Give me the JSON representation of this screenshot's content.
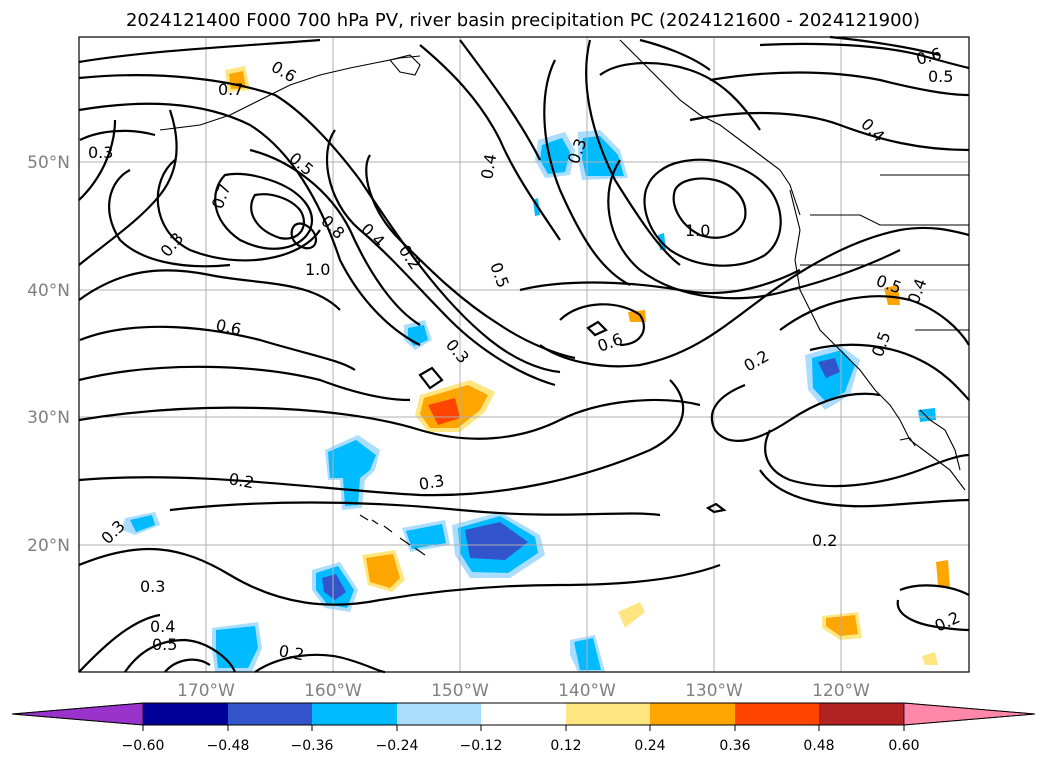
{
  "title": "2024121400 F000 700 hPa PV, river basin precipitation PC (2024121600 - 2024121900)",
  "colors": {
    "neg_lt_-0.60": "#9933cc",
    "-0.60_-0.48": "#000099",
    "-0.48_-0.36": "#3355cc",
    "-0.36_-0.24": "#00bbff",
    "-0.24_-0.12": "#aaddff",
    "-0.12_0.12": "#ffffff",
    "0.12_0.24": "#ffe680",
    "0.24_0.36": "#ffa500",
    "0.36_0.48": "#ff4400",
    "0.48_0.60": "#b22222",
    "gt_0.60": "#ff88aa"
  },
  "lat_labels": [
    "50°N",
    "40°N",
    "30°N",
    "20°N"
  ],
  "lon_labels": [
    "170°W",
    "160°W",
    "150°W",
    "140°W",
    "130°W",
    "120°W"
  ],
  "colorbar": {
    "ticks": [
      "−0.60",
      "−0.48",
      "−0.36",
      "−0.24",
      "−0.12",
      "0.12",
      "0.24",
      "0.36",
      "0.48",
      "0.60"
    ]
  },
  "contour_labels": [
    "0.6",
    "0.7",
    "0.3",
    "0.5",
    "0.7",
    "0.3",
    "0.8",
    "0.4",
    "1.0",
    "0.2",
    "0.6",
    "0.4",
    "0.5",
    "0.3",
    "0.3",
    "1.0",
    "0.6",
    "0.4",
    "0.2",
    "0.5",
    "0.5",
    "0.6",
    "0.5",
    "0.4",
    "0.2",
    "0.3",
    "0.3",
    "0.3",
    "0.4",
    "0.5",
    "0.2",
    "0.2",
    "0.2"
  ]
}
